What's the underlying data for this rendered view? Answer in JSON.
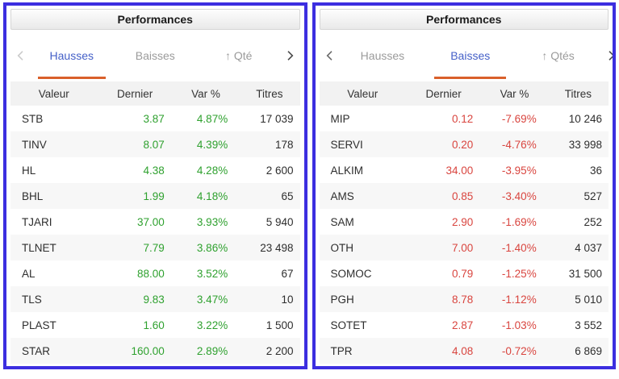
{
  "colors": {
    "panel_border": "#3c2ee0",
    "positive": "#2fa12f",
    "negative": "#d9453f",
    "tab_active": "#4560c8",
    "tab_underline": "#d9602b"
  },
  "panels": [
    {
      "title": "Performances",
      "trend": "up",
      "nav": {
        "prev_enabled": false,
        "next_enabled": true,
        "prev_icon": "chevron-left-icon",
        "next_icon": "chevron-right-icon"
      },
      "tabs": [
        {
          "label": "Hausses",
          "active": true
        },
        {
          "label": "Baisses",
          "active": false
        },
        {
          "label": "↑ Qté",
          "active": false
        }
      ],
      "columns": [
        "Valeur",
        "Dernier",
        "Var %",
        "Titres"
      ],
      "rows": [
        [
          "STB",
          "3.87",
          "4.87%",
          "17 039"
        ],
        [
          "TINV",
          "8.07",
          "4.39%",
          "178"
        ],
        [
          "HL",
          "4.38",
          "4.28%",
          "2 600"
        ],
        [
          "BHL",
          "1.99",
          "4.18%",
          "65"
        ],
        [
          "TJARI",
          "37.00",
          "3.93%",
          "5 940"
        ],
        [
          "TLNET",
          "7.79",
          "3.86%",
          "23 498"
        ],
        [
          "AL",
          "88.00",
          "3.52%",
          "67"
        ],
        [
          "TLS",
          "9.83",
          "3.47%",
          "10"
        ],
        [
          "PLAST",
          "1.60",
          "3.22%",
          "1 500"
        ],
        [
          "STAR",
          "160.00",
          "2.89%",
          "2 200"
        ]
      ]
    },
    {
      "title": "Performances",
      "trend": "down",
      "nav": {
        "prev_enabled": true,
        "next_enabled": true,
        "prev_icon": "chevron-left-icon",
        "next_icon": "chevron-right-icon"
      },
      "tabs": [
        {
          "label": "Hausses",
          "active": false
        },
        {
          "label": "Baisses",
          "active": true
        },
        {
          "label": "↑ Qtés",
          "active": false
        }
      ],
      "columns": [
        "Valeur",
        "Dernier",
        "Var %",
        "Titres"
      ],
      "rows": [
        [
          "MIP",
          "0.12",
          "-7.69%",
          "10 246"
        ],
        [
          "SERVI",
          "0.20",
          "-4.76%",
          "33 998"
        ],
        [
          "ALKIM",
          "34.00",
          "-3.95%",
          "36"
        ],
        [
          "AMS",
          "0.85",
          "-3.40%",
          "527"
        ],
        [
          "SAM",
          "2.90",
          "-1.69%",
          "252"
        ],
        [
          "OTH",
          "7.00",
          "-1.40%",
          "4 037"
        ],
        [
          "SOMOC",
          "0.79",
          "-1.25%",
          "31 500"
        ],
        [
          "PGH",
          "8.78",
          "-1.12%",
          "5 010"
        ],
        [
          "SOTET",
          "2.87",
          "-1.03%",
          "3 552"
        ],
        [
          "TPR",
          "4.08",
          "-0.72%",
          "6 869"
        ]
      ]
    }
  ]
}
